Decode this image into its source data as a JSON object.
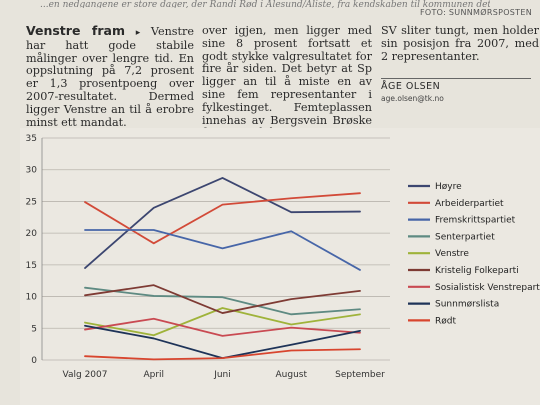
{
  "header": {
    "photo_credit": "FOTO: SUNNMØRSPOSTEN",
    "top_cut_text": "...en nedgangene er store dager, der Randi Rød i Ålesund/Aliste, fra kendskaben til kommunen dette..."
  },
  "article": {
    "headline": "Venstre fram",
    "arrow": "▸",
    "col1_text": " Venstre har hatt gode stabile målinger over lengre tid. En oppslutning på 7,2 prosent er 1,3 prosentpoeng over 2007-resultatet. Dermed ligger Venstre an til å erobre minst ett mandat.\n   Senterpartiet er på vei opp-",
    "col2_text": "over igjen, men ligger med sine 8 prosent fortsatt et godt stykke valgresultatet for fire år siden. Det betyr at Sp ligger an til å miste en av sine fem representanter i fylkestinget. Femteplassen innehas av Bergsvein Brøske fra Surnadal.",
    "col3_text": "SV sliter tungt, men holder sin posisjon fra 2007, med 2 representanter.",
    "byline_name": "ÅGE OLSEN",
    "byline_email": "age.olsen@tk.no"
  },
  "chart_data": {
    "type": "line",
    "categories": [
      "Valg 2007",
      "April",
      "Juni",
      "August",
      "September"
    ],
    "ylim": [
      0,
      35
    ],
    "yticks": [
      0,
      5,
      10,
      15,
      20,
      25,
      30,
      35
    ],
    "grid": "horizontal",
    "legend_position": "right",
    "series": [
      {
        "name": "Høyre",
        "color": "#3c4670",
        "values": [
          14.5,
          24.0,
          28.7,
          23.3,
          23.4
        ]
      },
      {
        "name": "Arbeiderpartiet",
        "color": "#d24a38",
        "values": [
          24.9,
          18.4,
          24.5,
          25.5,
          26.3
        ]
      },
      {
        "name": "Fremskrittspartiet",
        "color": "#4766a8",
        "values": [
          20.5,
          20.5,
          17.6,
          20.3,
          14.2
        ]
      },
      {
        "name": "Senterpartiet",
        "color": "#5e8a82",
        "values": [
          11.4,
          10.1,
          9.9,
          7.2,
          8.0
        ]
      },
      {
        "name": "Venstre",
        "color": "#9fb33a",
        "values": [
          5.9,
          3.9,
          8.2,
          5.6,
          7.2
        ]
      },
      {
        "name": "Kristelig Folkeparti",
        "color": "#7e3b34",
        "values": [
          10.2,
          11.8,
          7.4,
          9.6,
          10.9
        ]
      },
      {
        "name": "Sosialistisk Venstreparti",
        "color": "#c94a52",
        "values": [
          4.8,
          6.5,
          3.8,
          5.1,
          4.3
        ]
      },
      {
        "name": "Sunnmørslista",
        "color": "#1e3358",
        "values": [
          5.4,
          3.4,
          0.3,
          2.4,
          4.6
        ]
      },
      {
        "name": "Rødt",
        "color": "#d8452e",
        "values": [
          0.6,
          0.1,
          0.3,
          1.5,
          1.7
        ]
      }
    ]
  }
}
